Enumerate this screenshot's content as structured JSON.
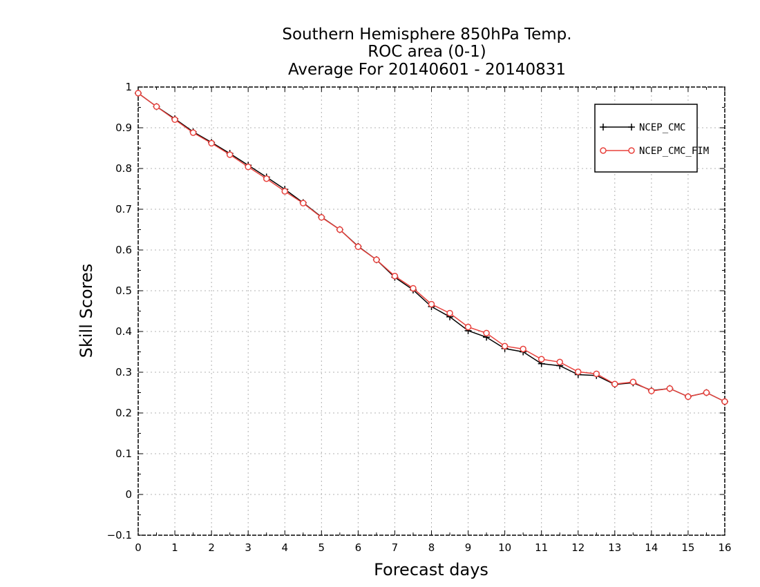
{
  "chart_data": {
    "type": "line",
    "title_lines": [
      "Southern Hemisphere 850hPa Temp.",
      "ROC area (0-1)",
      "Average For 20140601 - 20140831"
    ],
    "xlabel": "Forecast days",
    "ylabel": "Skill Scores",
    "xlim": [
      0,
      16
    ],
    "ylim": [
      -0.1,
      1
    ],
    "xticks": [
      "0",
      "1",
      "2",
      "3",
      "4",
      "5",
      "6",
      "7",
      "8",
      "9",
      "10",
      "11",
      "12",
      "13",
      "14",
      "15",
      "16"
    ],
    "yticks": [
      "−0.1",
      "0",
      "0.1",
      "0.2",
      "0.3",
      "0.4",
      "0.5",
      "0.6",
      "0.7",
      "0.8",
      "0.9",
      "1"
    ],
    "grid": true,
    "legend_position": "top-right",
    "x": [
      0,
      0.5,
      1,
      1.5,
      2,
      2.5,
      3,
      3.5,
      4,
      4.5,
      5,
      5.5,
      6,
      6.5,
      7,
      7.5,
      8,
      8.5,
      9,
      9.5,
      10,
      10.5,
      11,
      11.5,
      12,
      12.5,
      13,
      13.5,
      14,
      14.5,
      15,
      15.5,
      16
    ],
    "series": [
      {
        "name": "NCEP_CMC",
        "color": "#000000",
        "marker": "plus",
        "values": [
          0.985,
          0.952,
          0.922,
          0.89,
          0.864,
          0.837,
          0.808,
          0.779,
          0.749,
          0.716,
          0.681,
          0.65,
          0.609,
          0.576,
          0.533,
          0.502,
          0.461,
          0.436,
          0.402,
          0.386,
          0.358,
          0.35,
          0.321,
          0.316,
          0.294,
          0.292,
          0.27,
          0.274,
          0.255,
          0.26,
          0.24,
          0.25,
          0.228
        ]
      },
      {
        "name": "NCEP_CMC_FIM",
        "color": "#e8413c",
        "marker": "circle",
        "values": [
          0.985,
          0.952,
          0.92,
          0.888,
          0.862,
          0.834,
          0.804,
          0.775,
          0.744,
          0.715,
          0.68,
          0.65,
          0.608,
          0.576,
          0.536,
          0.506,
          0.467,
          0.445,
          0.411,
          0.396,
          0.364,
          0.357,
          0.332,
          0.325,
          0.301,
          0.296,
          0.271,
          0.276,
          0.254,
          0.26,
          0.24,
          0.25,
          0.228
        ]
      }
    ]
  }
}
